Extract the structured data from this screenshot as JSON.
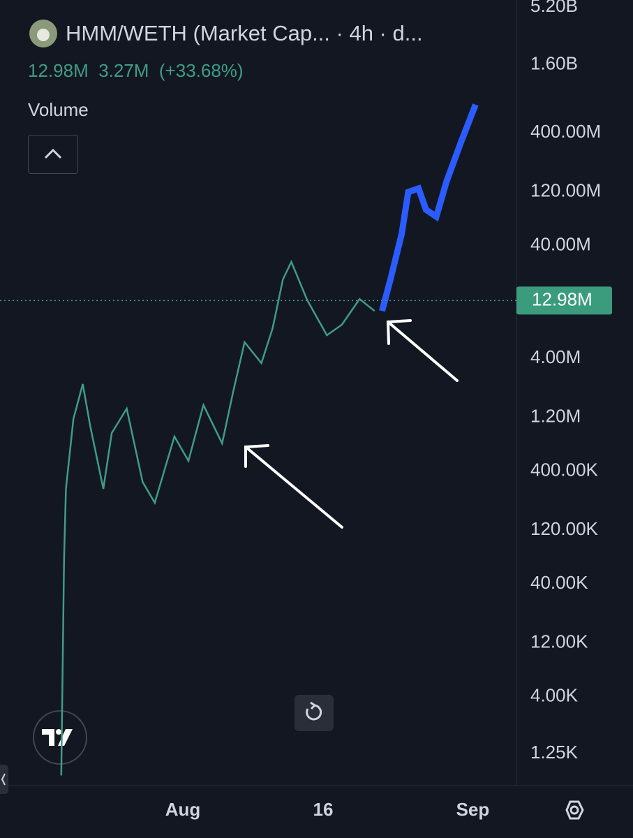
{
  "header": {
    "title": "HMM/WETH (Market Cap... · 4h · d...",
    "value": "12.98M",
    "change": "3.27M",
    "change_pct": "(+33.68%)",
    "indicator": "Volume"
  },
  "chart_data": {
    "type": "line",
    "log_scale": true,
    "grid": false,
    "ylim": [
      650,
      6000000000
    ],
    "yticks": [
      {
        "value": 5200000000,
        "label": "5.20B"
      },
      {
        "value": 1600000000,
        "label": "1.60B"
      },
      {
        "value": 400000000,
        "label": "400.00M"
      },
      {
        "value": 120000000,
        "label": "120.00M"
      },
      {
        "value": 40000000,
        "label": "40.00M"
      },
      {
        "value": 4000000,
        "label": "4.00M"
      },
      {
        "value": 1200000,
        "label": "1.20M"
      },
      {
        "value": 400000,
        "label": "400.00K"
      },
      {
        "value": 120000,
        "label": "120.00K"
      },
      {
        "value": 40000,
        "label": "40.00K"
      },
      {
        "value": 12000,
        "label": "12.00K"
      },
      {
        "value": 4000,
        "label": "4.00K"
      },
      {
        "value": 1250,
        "label": "1.25K"
      }
    ],
    "xlim": [
      -18.55,
      36.67
    ],
    "xticks": [
      {
        "value": 1,
        "label": "Aug"
      },
      {
        "value": 16,
        "label": "16"
      },
      {
        "value": 32,
        "label": "Sep"
      }
    ],
    "last_price": {
      "value": 12980000,
      "label": "12.98M"
    },
    "series": [
      {
        "color": "#3f9c85",
        "width": 2.5,
        "x": [
          -12.0,
          -11.7,
          -11.5,
          -10.7,
          -9.7,
          -8.9,
          -7.5,
          -6.6,
          -5.0,
          -3.3,
          -2.0,
          0.1,
          1.6,
          3.2,
          5.2,
          6.4,
          7.6,
          9.4,
          10.6,
          11.7,
          12.6,
          14.3,
          16.4,
          18.0,
          19.9,
          21.5
        ],
        "values": [
          800,
          66800,
          278000,
          1160000,
          2360000,
          1000000,
          278000,
          870000,
          1430000,
          320000,
          209000,
          810000,
          492000,
          1540000,
          703000,
          2050000,
          5550000,
          3620000,
          7380000,
          20000000,
          28600000,
          13100000,
          6400000,
          7930000,
          13400000,
          10500000
        ]
      },
      {
        "color": "#2b5cff",
        "width": 9,
        "x": [
          22.3,
          23.2,
          24.4,
          25.1,
          26.2,
          27.0,
          28.1,
          29.2,
          30.7,
          32.3
        ],
        "values": [
          10500000,
          20000000,
          50600000,
          119000000,
          128000000,
          83000000,
          72000000,
          148000000,
          323000000,
          708000000
        ]
      }
    ]
  }
}
